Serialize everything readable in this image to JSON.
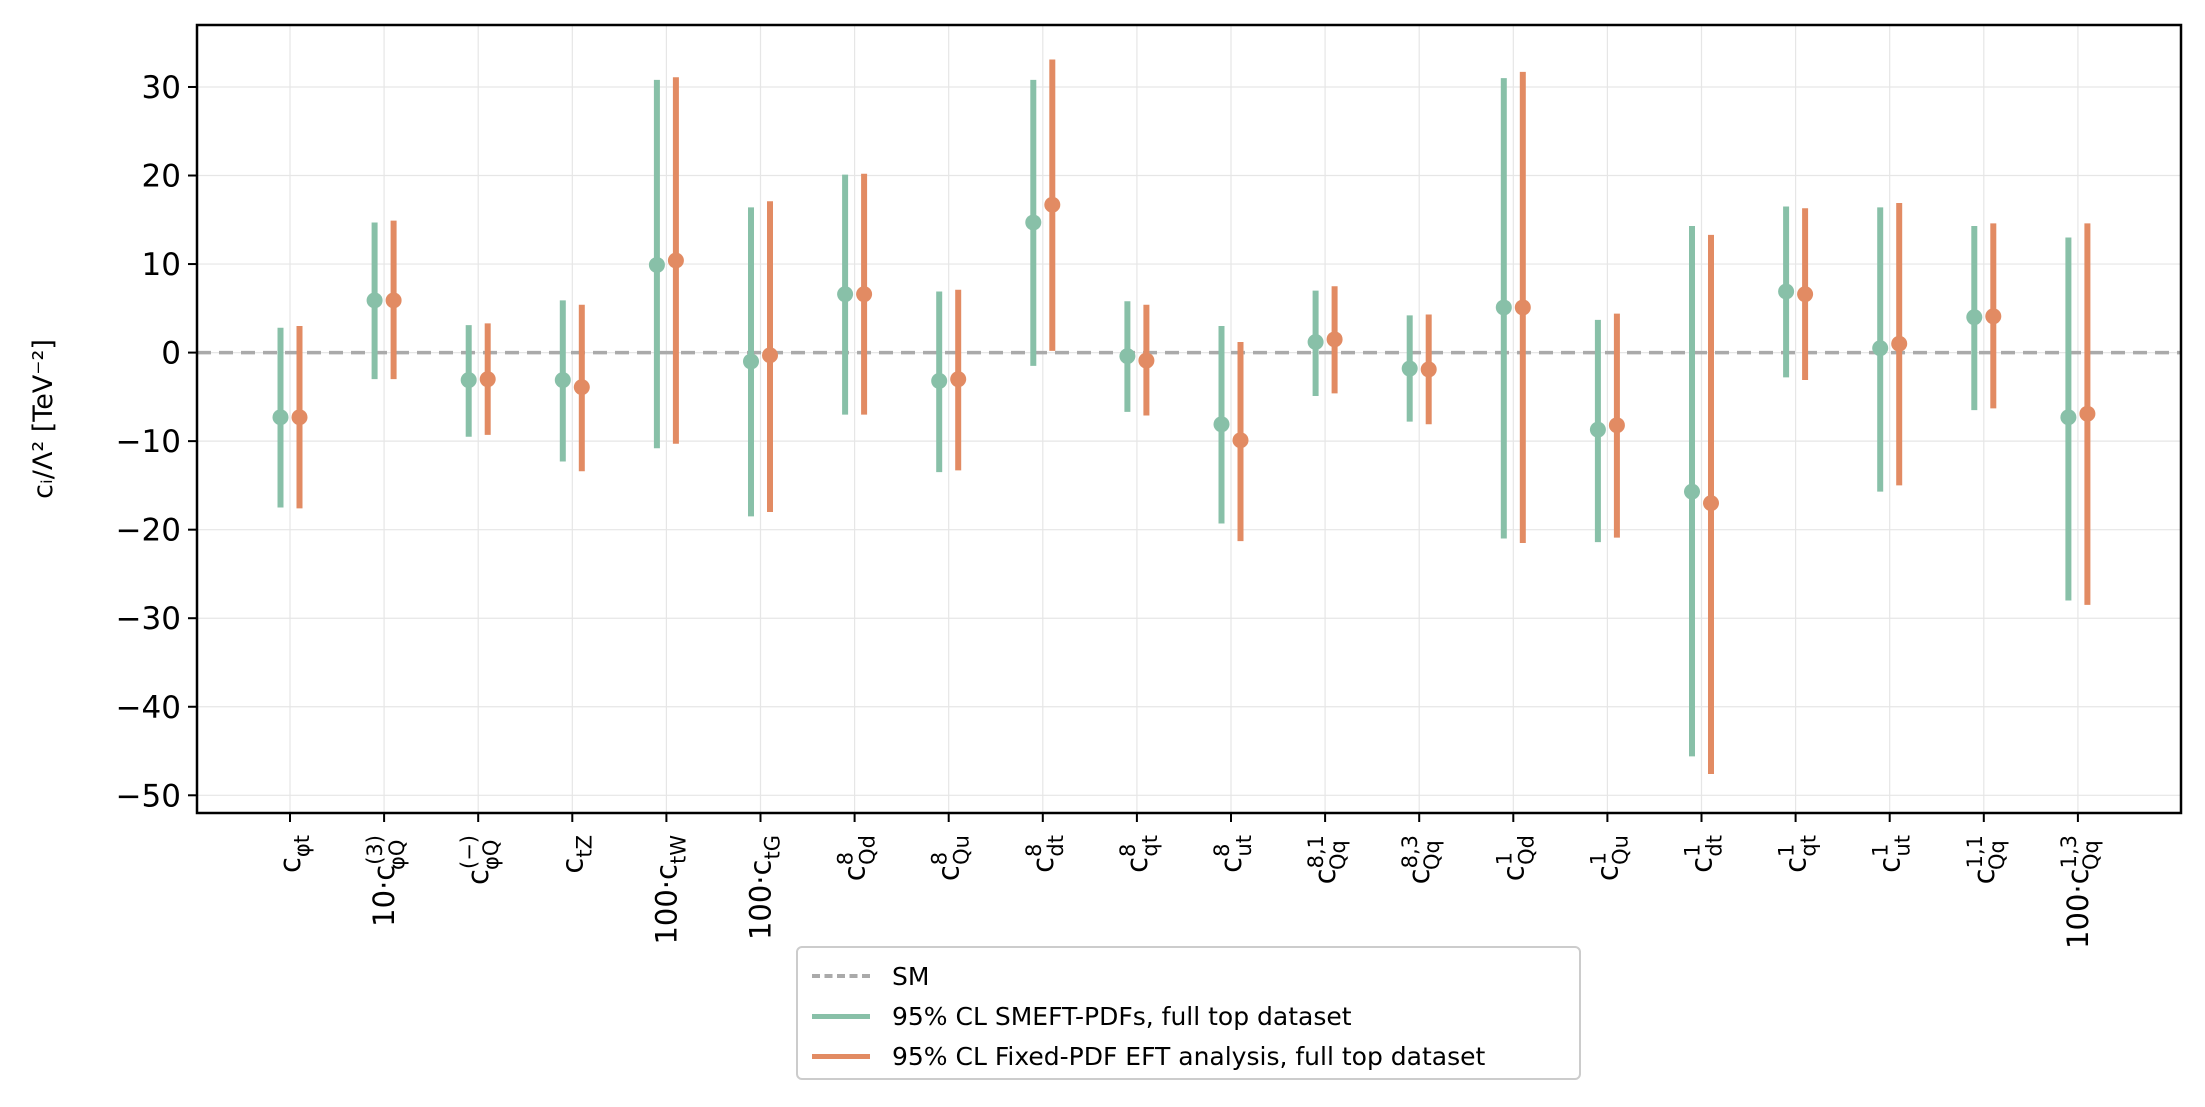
{
  "chart_data": {
    "type": "errorbar",
    "ylabel": "cᵢ/Λ²  [TeV⁻²]",
    "ylim": [
      -52,
      37
    ],
    "yticks": [
      30,
      20,
      10,
      0,
      -10,
      -20,
      -30,
      -40,
      -50
    ],
    "ytick_labels": [
      "30",
      "20",
      "10",
      "0",
      "−10",
      "−20",
      "−30",
      "−40",
      "−50"
    ],
    "grid": true,
    "legend_position": "bottom-center",
    "categories": [
      {
        "prefix": "",
        "base": "c",
        "sub": "φt",
        "sup": ""
      },
      {
        "prefix": "10·",
        "base": "c",
        "sub": "φQ",
        "sup": "(3)"
      },
      {
        "prefix": "",
        "base": "c",
        "sub": "φQ",
        "sup": "(−)"
      },
      {
        "prefix": "",
        "base": "c",
        "sub": "tZ",
        "sup": ""
      },
      {
        "prefix": "100·",
        "base": "c",
        "sub": "tW",
        "sup": ""
      },
      {
        "prefix": "100·",
        "base": "c",
        "sub": "tG",
        "sup": ""
      },
      {
        "prefix": "",
        "base": "c",
        "sub": "Qd",
        "sup": "8"
      },
      {
        "prefix": "",
        "base": "c",
        "sub": "Qu",
        "sup": "8"
      },
      {
        "prefix": "",
        "base": "c",
        "sub": "dt",
        "sup": "8"
      },
      {
        "prefix": "",
        "base": "c",
        "sub": "qt",
        "sup": "8"
      },
      {
        "prefix": "",
        "base": "c",
        "sub": "ut",
        "sup": "8"
      },
      {
        "prefix": "",
        "base": "c",
        "sub": "Qq",
        "sup": "8,1"
      },
      {
        "prefix": "",
        "base": "c",
        "sub": "Qq",
        "sup": "8,3"
      },
      {
        "prefix": "",
        "base": "c",
        "sub": "Qd",
        "sup": "1"
      },
      {
        "prefix": "",
        "base": "c",
        "sub": "Qu",
        "sup": "1"
      },
      {
        "prefix": "",
        "base": "c",
        "sub": "dt",
        "sup": "1"
      },
      {
        "prefix": "",
        "base": "c",
        "sub": "qt",
        "sup": "1"
      },
      {
        "prefix": "",
        "base": "c",
        "sub": "ut",
        "sup": "1"
      },
      {
        "prefix": "",
        "base": "c",
        "sub": "Qq",
        "sup": "1,1"
      },
      {
        "prefix": "100·",
        "base": "c",
        "sub": "Qq",
        "sup": "1,3"
      }
    ],
    "reference_line": {
      "name": "SM",
      "y": 0,
      "color": "#aaaaaa",
      "style": "dashed"
    },
    "series": [
      {
        "name": "95% CL SMEFT-PDFs, full top dataset",
        "color": "#88c0a8",
        "central": [
          -7.3,
          5.9,
          -3.1,
          -3.1,
          9.9,
          -1.0,
          6.6,
          -3.2,
          14.7,
          -0.4,
          -8.1,
          1.2,
          -1.8,
          5.1,
          -8.7,
          -15.7,
          6.9,
          0.5,
          4.0,
          -7.3
        ],
        "low": [
          -17.5,
          -3.0,
          -9.5,
          -12.3,
          -10.8,
          -18.5,
          -7.0,
          -13.5,
          -1.5,
          -6.7,
          -19.3,
          -4.9,
          -7.8,
          -21.0,
          -21.4,
          -45.6,
          -2.8,
          -15.7,
          -6.5,
          -28.0
        ],
        "high": [
          2.8,
          14.7,
          3.1,
          5.9,
          30.8,
          16.4,
          20.1,
          6.9,
          30.8,
          5.8,
          3.0,
          7.0,
          4.2,
          31.0,
          3.7,
          14.3,
          16.5,
          16.4,
          14.3,
          13.0
        ]
      },
      {
        "name": "95% CL Fixed-PDF EFT analysis, full top dataset",
        "color": "#e28b63",
        "central": [
          -7.3,
          5.9,
          -3.0,
          -3.9,
          10.4,
          -0.3,
          6.6,
          -3.0,
          16.7,
          -0.9,
          -9.9,
          1.5,
          -1.9,
          5.1,
          -8.2,
          -17.0,
          6.6,
          1.0,
          4.1,
          -6.9
        ],
        "low": [
          -17.6,
          -3.0,
          -9.3,
          -13.4,
          -10.3,
          -18.0,
          -7.0,
          -13.3,
          0.2,
          -7.1,
          -21.3,
          -4.6,
          -8.1,
          -21.5,
          -20.9,
          -47.6,
          -3.1,
          -15.0,
          -6.3,
          -28.5
        ],
        "high": [
          3.0,
          14.9,
          3.3,
          5.4,
          31.1,
          17.1,
          20.2,
          7.1,
          33.1,
          5.4,
          1.2,
          7.5,
          4.3,
          31.7,
          4.4,
          13.3,
          16.3,
          16.9,
          14.6,
          14.6
        ]
      }
    ]
  }
}
